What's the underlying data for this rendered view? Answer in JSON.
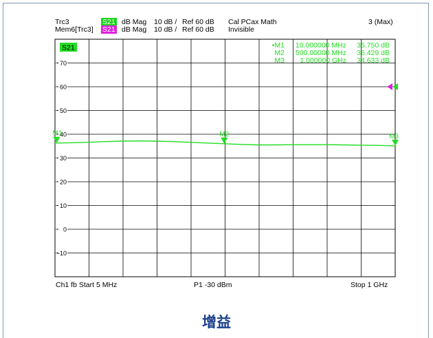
{
  "header": {
    "trc_label": "Trc3",
    "mem_label": "Mem6[Trc3]",
    "trc_param": "S21",
    "mem_param": "S21",
    "trc_format": "dB Mag",
    "trc_scale": "10 dB /",
    "trc_ref": "Ref 60 dB",
    "trc_cal": "Cal PCax Math",
    "mem_format": "dB Mag",
    "mem_scale": "10 dB /",
    "mem_ref": "Ref 60 dB",
    "mem_status": "Invisible",
    "max_label": "3 (Max)"
  },
  "trace_badge": "S21",
  "markers": [
    {
      "prefix": "•M1",
      "freq": "10.000000 MHz",
      "value": "35.750 dB"
    },
    {
      "prefix": "M2",
      "freq": "500.00000 MHz",
      "value": "36.429 dB"
    },
    {
      "prefix": "M3",
      "freq": "1.000000 GHz",
      "value": "34.633 dB"
    }
  ],
  "footer": {
    "left": "Ch1  fb  Start  5 MHz",
    "center": "P1   -30 dBm",
    "right": "Stop  1 GHz"
  },
  "caption": "增益",
  "colors": {
    "trace": "#22dd22",
    "memory": "#dd22dd",
    "grid": "#000000",
    "caption": "#1a3f8c"
  },
  "chart_data": {
    "type": "line",
    "xlabel": "",
    "ylabel": "",
    "xlim_mhz": [
      5,
      1000
    ],
    "ylim": [
      -20,
      80
    ],
    "yticks": [
      70,
      60,
      50,
      40,
      30,
      20,
      10,
      0,
      -10
    ],
    "grid": true,
    "reference_level": 60,
    "series": [
      {
        "name": "S21",
        "x_mhz": [
          5,
          50,
          100,
          150,
          200,
          250,
          300,
          350,
          400,
          450,
          500,
          550,
          600,
          650,
          700,
          750,
          800,
          850,
          900,
          950,
          1000
        ],
        "values": [
          36.3,
          36.4,
          36.6,
          36.9,
          37.1,
          37.2,
          37.1,
          36.9,
          36.6,
          36.3,
          36.0,
          35.7,
          35.5,
          35.5,
          35.6,
          35.6,
          35.6,
          35.5,
          35.4,
          35.3,
          35.1
        ]
      }
    ],
    "markers": [
      {
        "label": "M1",
        "x_mhz": 10,
        "value": 35.75
      },
      {
        "label": "M2",
        "x_mhz": 500,
        "value": 36.429
      },
      {
        "label": "M3",
        "x_mhz": 1000,
        "value": 34.633
      }
    ]
  }
}
